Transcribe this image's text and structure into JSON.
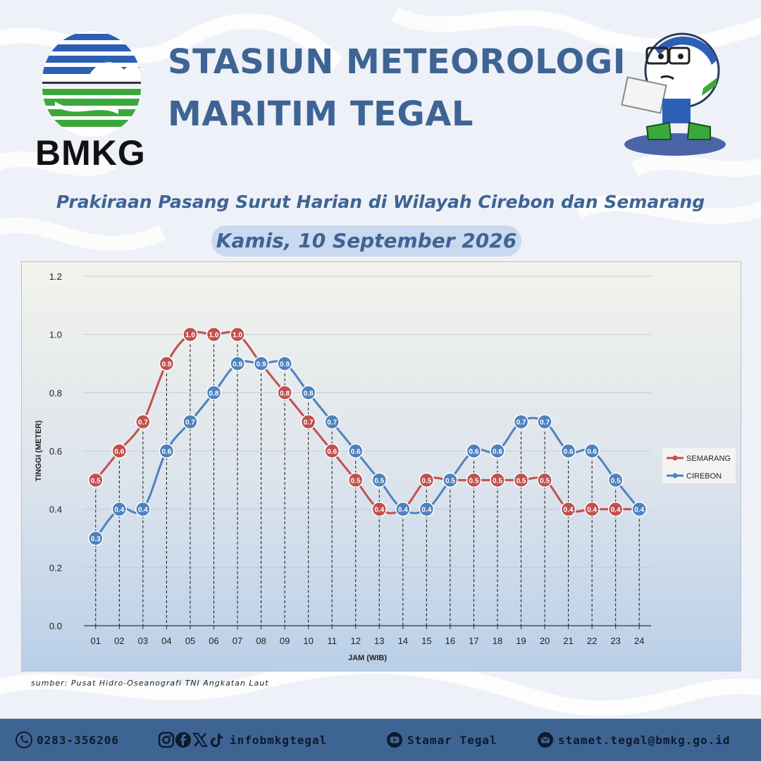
{
  "header": {
    "logo_text": "BMKG",
    "title_line1": "STASIUN METEOROLOGI",
    "title_line2": "MARITIM TEGAL",
    "subtitle": "Prakiraan Pasang Surut Harian di Wilayah Cirebon dan Semarang",
    "date": "Kamis, 10 September 2026"
  },
  "chart_data": {
    "type": "line",
    "xlabel": "JAM (WIB)",
    "ylabel": "TINGGI (METER)",
    "ylim": [
      0,
      1.2
    ],
    "yticks": [
      "0.0",
      "0.2",
      "0.4",
      "0.6",
      "0.8",
      "1.0",
      "1.2"
    ],
    "x": [
      "01",
      "02",
      "03",
      "04",
      "05",
      "06",
      "07",
      "08",
      "09",
      "10",
      "11",
      "12",
      "13",
      "14",
      "15",
      "16",
      "17",
      "18",
      "19",
      "20",
      "21",
      "22",
      "23",
      "24"
    ],
    "grid": true,
    "legend_position": "right",
    "series": [
      {
        "name": "SEMARANG",
        "color": "#c0504d",
        "values": [
          0.5,
          0.6,
          0.7,
          0.9,
          1.0,
          1.0,
          1.0,
          0.9,
          0.8,
          0.7,
          0.6,
          0.5,
          0.4,
          0.4,
          0.5,
          0.5,
          0.5,
          0.5,
          0.5,
          0.5,
          0.4,
          0.4,
          0.4,
          0.4
        ]
      },
      {
        "name": "CIREBON",
        "color": "#4f81bd",
        "values": [
          0.3,
          0.4,
          0.4,
          0.6,
          0.7,
          0.8,
          0.9,
          0.9,
          0.9,
          0.8,
          0.7,
          0.6,
          0.5,
          0.4,
          0.4,
          0.5,
          0.6,
          0.6,
          0.7,
          0.7,
          0.6,
          0.6,
          0.5,
          0.4
        ]
      }
    ]
  },
  "source_text": "sumber: Pusat Hidro-Oseanografi TNI Angkatan Laut",
  "footer": {
    "phone": "0283-356206",
    "social": "infobmkgtegal",
    "youtube": "Stamar Tegal",
    "email": "stamet.tegal@bmkg.go.id"
  },
  "colors": {
    "title": "#3e6494",
    "footer_bg": "#3e6494",
    "semarang": "#c0504d",
    "cirebon": "#4f81bd"
  }
}
